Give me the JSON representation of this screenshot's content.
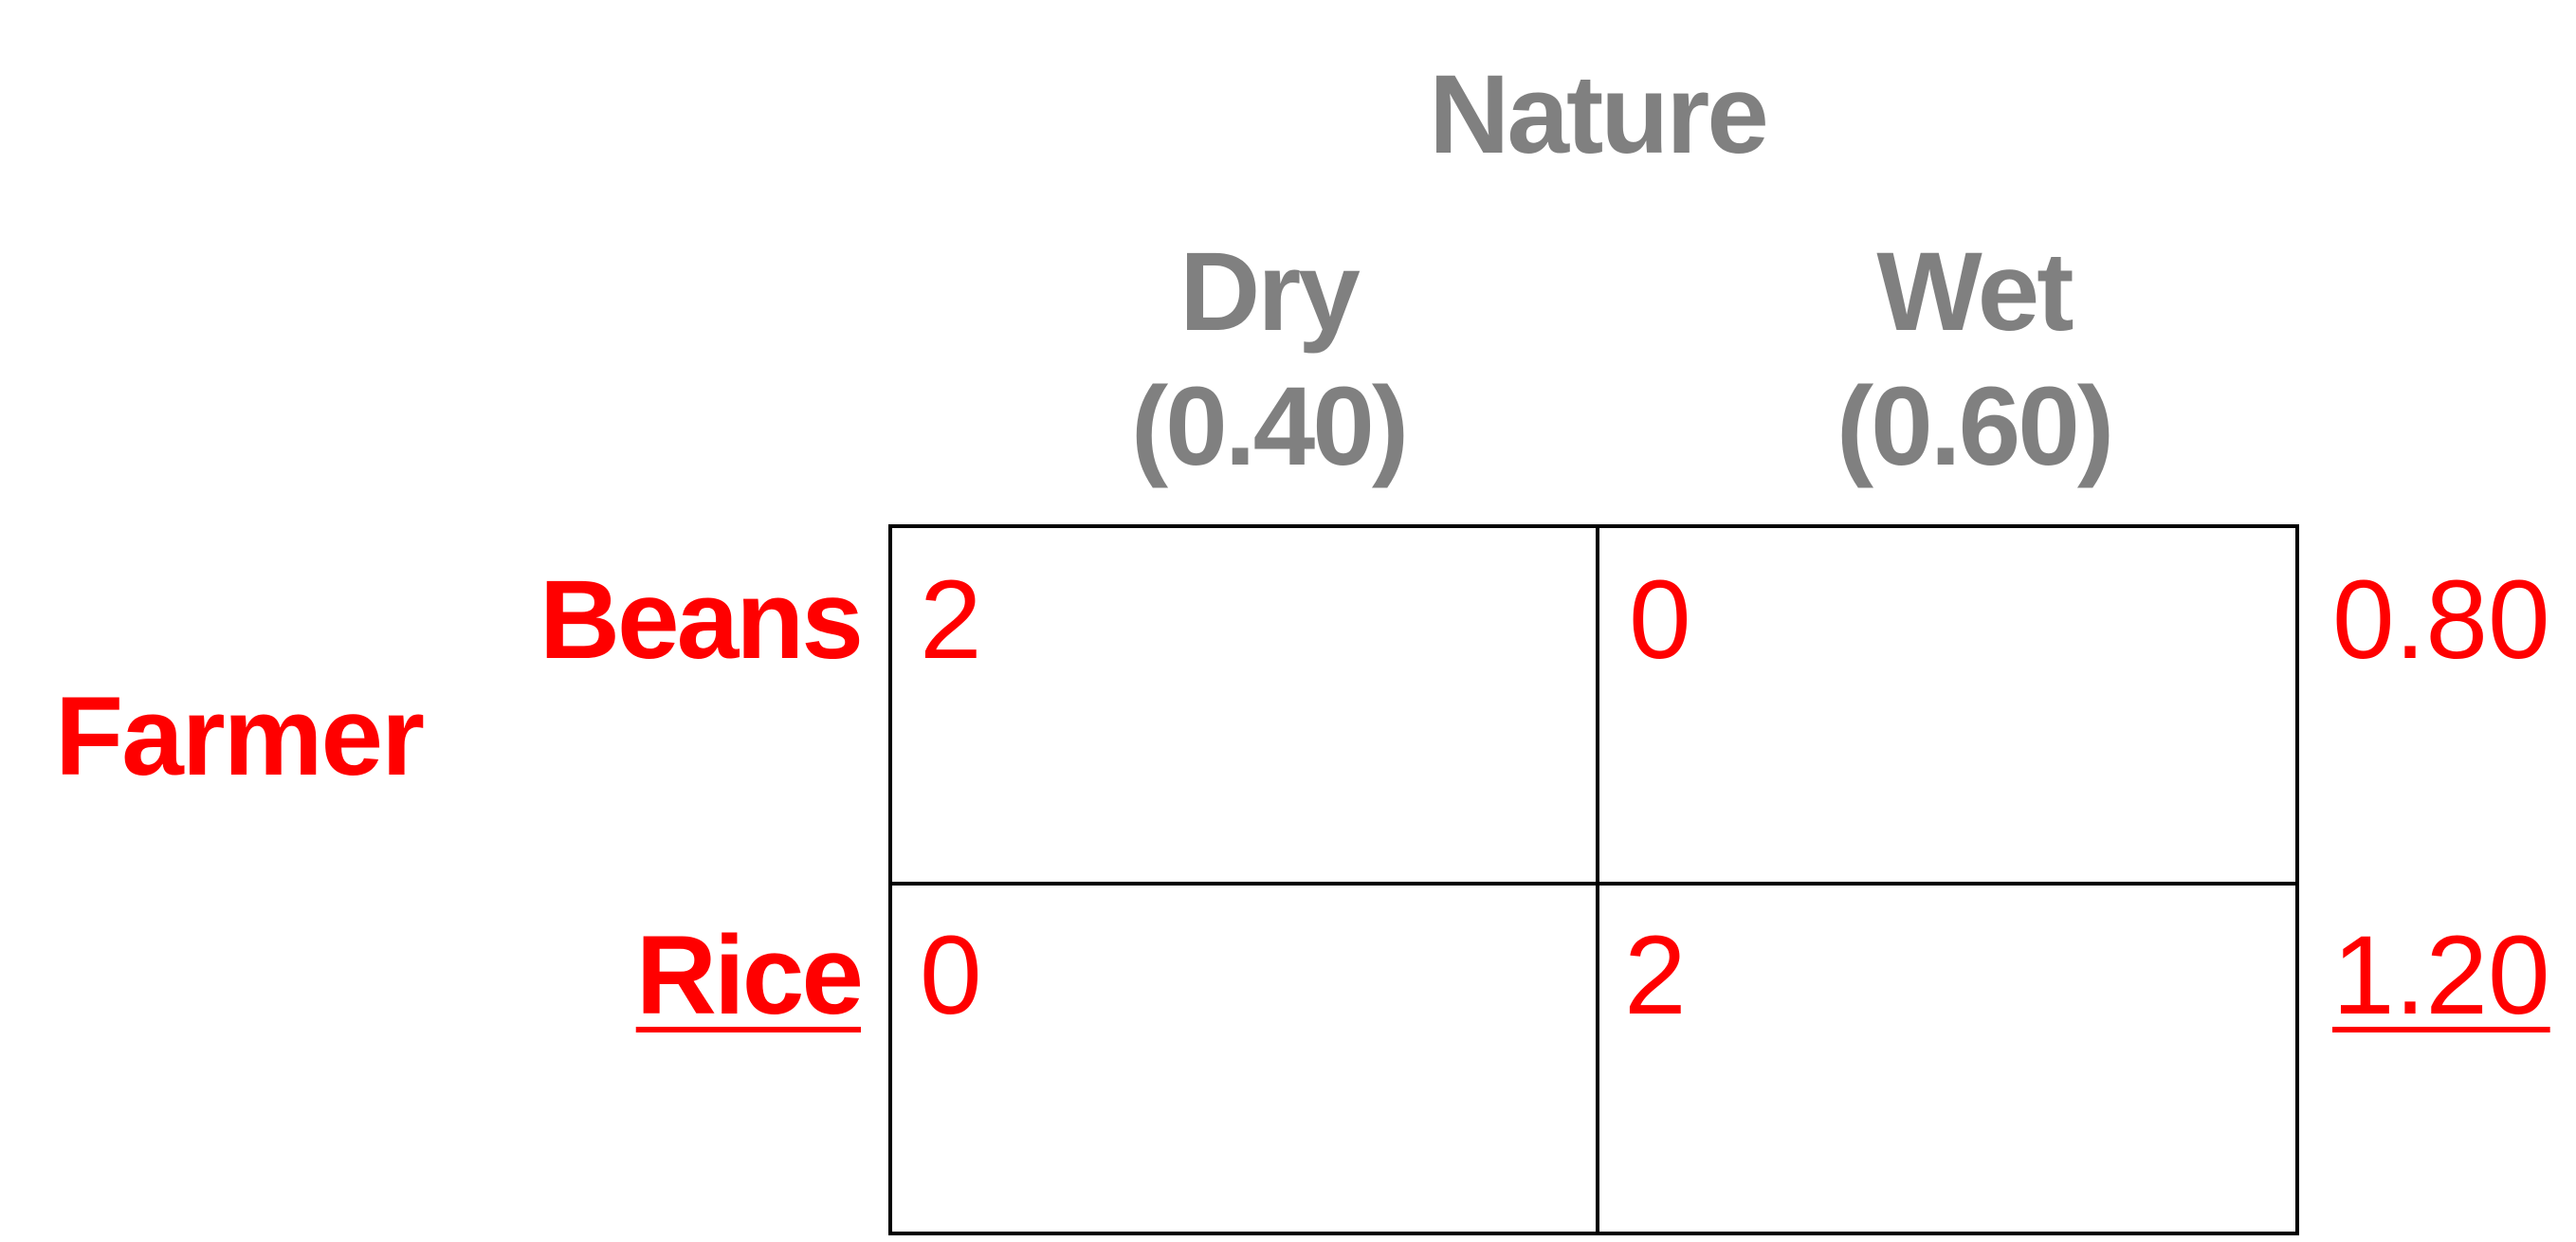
{
  "column_player": "Nature",
  "row_player": "Farmer",
  "columns": [
    {
      "name": "Dry",
      "probability": "(0.40)"
    },
    {
      "name": "Wet",
      "probability": "(0.60)"
    }
  ],
  "rows": [
    {
      "name": "Beans",
      "payoffs": [
        "2",
        "0"
      ],
      "expected": "0.80",
      "chosen": false
    },
    {
      "name": "Rice",
      "payoffs": [
        "0",
        "2"
      ],
      "expected": "1.20",
      "chosen": true
    }
  ],
  "colors": {
    "header_gray": "#808080",
    "farmer_red": "#ff0000",
    "grid_black": "#000000"
  }
}
